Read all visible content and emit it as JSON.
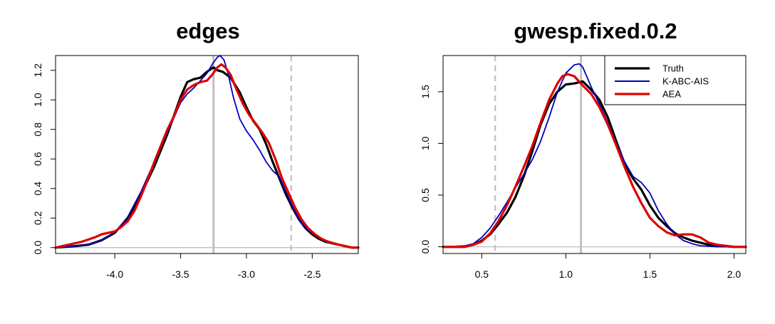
{
  "chart_data": [
    {
      "type": "line",
      "title": "edges",
      "xlabel": "",
      "ylabel": "",
      "xlim": [
        -4.45,
        -2.15
      ],
      "ylim": [
        -0.04,
        1.3
      ],
      "xticks": [
        -4.0,
        -3.5,
        -3.0,
        -2.5
      ],
      "xtick_labels": [
        "-4.0",
        "-3.5",
        "-3.0",
        "-2.5"
      ],
      "yticks": [
        0.0,
        0.2,
        0.4,
        0.6,
        0.8,
        1.0,
        1.2
      ],
      "ytick_labels": [
        "0.0",
        "0.2",
        "0.4",
        "0.6",
        "0.8",
        "1.0",
        "1.2"
      ],
      "reference_lines": [
        {
          "orientation": "horizontal",
          "value": 0,
          "color": "#c0c0c0",
          "style": "solid"
        },
        {
          "orientation": "vertical",
          "value": -3.25,
          "color": "#c0c0c0",
          "style": "solid"
        },
        {
          "orientation": "vertical",
          "value": -2.66,
          "color": "#c0c0c0",
          "style": "dashed"
        }
      ],
      "series": [
        {
          "color": "#000000",
          "x": [
            -4.45,
            -4.3,
            -4.2,
            -4.1,
            -4.0,
            -3.9,
            -3.8,
            -3.7,
            -3.6,
            -3.5,
            -3.45,
            -3.4,
            -3.35,
            -3.3,
            -3.25,
            -3.22,
            -3.18,
            -3.12,
            -3.05,
            -3.0,
            -2.95,
            -2.9,
            -2.85,
            -2.8,
            -2.75,
            -2.7,
            -2.65,
            -2.6,
            -2.55,
            -2.5,
            -2.45,
            -2.4,
            -2.3,
            -2.2,
            -2.15
          ],
          "y": [
            0.0,
            0.01,
            0.02,
            0.05,
            0.1,
            0.2,
            0.36,
            0.55,
            0.77,
            1.02,
            1.12,
            1.14,
            1.15,
            1.19,
            1.22,
            1.2,
            1.19,
            1.15,
            1.05,
            0.95,
            0.86,
            0.8,
            0.7,
            0.58,
            0.47,
            0.36,
            0.27,
            0.19,
            0.13,
            0.09,
            0.06,
            0.04,
            0.02,
            0.0,
            0.0
          ]
        },
        {
          "color": "#0000bb",
          "x": [
            -4.45,
            -4.3,
            -4.2,
            -4.1,
            -4.0,
            -3.9,
            -3.8,
            -3.7,
            -3.6,
            -3.5,
            -3.45,
            -3.4,
            -3.35,
            -3.3,
            -3.26,
            -3.22,
            -3.2,
            -3.17,
            -3.14,
            -3.1,
            -3.05,
            -3.0,
            -2.95,
            -2.9,
            -2.85,
            -2.8,
            -2.75,
            -2.7,
            -2.65,
            -2.6,
            -2.55,
            -2.5,
            -2.45,
            -2.4,
            -2.3,
            -2.2,
            -2.15
          ],
          "y": [
            0.0,
            0.01,
            0.02,
            0.05,
            0.1,
            0.21,
            0.38,
            0.58,
            0.78,
            0.98,
            1.04,
            1.08,
            1.13,
            1.18,
            1.24,
            1.29,
            1.3,
            1.27,
            1.18,
            1.02,
            0.87,
            0.79,
            0.73,
            0.66,
            0.58,
            0.52,
            0.48,
            0.38,
            0.28,
            0.19,
            0.13,
            0.1,
            0.07,
            0.05,
            0.02,
            0.0,
            0.0
          ]
        },
        {
          "color": "#dd0000",
          "x": [
            -4.45,
            -4.35,
            -4.25,
            -4.15,
            -4.1,
            -4.05,
            -4.0,
            -3.95,
            -3.9,
            -3.85,
            -3.8,
            -3.75,
            -3.7,
            -3.65,
            -3.6,
            -3.55,
            -3.5,
            -3.45,
            -3.4,
            -3.35,
            -3.3,
            -3.26,
            -3.22,
            -3.19,
            -3.16,
            -3.12,
            -3.08,
            -3.03,
            -2.98,
            -2.93,
            -2.88,
            -2.83,
            -2.78,
            -2.73,
            -2.68,
            -2.63,
            -2.58,
            -2.53,
            -2.48,
            -2.43,
            -2.38,
            -2.3,
            -2.2,
            -2.15
          ],
          "y": [
            0.0,
            0.02,
            0.04,
            0.07,
            0.09,
            0.1,
            0.11,
            0.14,
            0.18,
            0.25,
            0.35,
            0.46,
            0.58,
            0.69,
            0.8,
            0.89,
            1.0,
            1.07,
            1.1,
            1.12,
            1.13,
            1.17,
            1.22,
            1.24,
            1.22,
            1.17,
            1.08,
            0.98,
            0.9,
            0.84,
            0.78,
            0.71,
            0.6,
            0.47,
            0.37,
            0.27,
            0.19,
            0.13,
            0.09,
            0.06,
            0.04,
            0.02,
            0.0,
            0.0
          ]
        }
      ]
    },
    {
      "type": "line",
      "title": "gwesp.fixed.0.2",
      "xlabel": "",
      "ylabel": "",
      "xlim": [
        0.27,
        2.07
      ],
      "ylim": [
        -0.065,
        1.85
      ],
      "xticks": [
        0.5,
        1.0,
        1.5,
        2.0
      ],
      "xtick_labels": [
        "0.5",
        "1.0",
        "1.5",
        "2.0"
      ],
      "yticks": [
        0.0,
        0.5,
        1.0,
        1.5
      ],
      "ytick_labels": [
        "0.0",
        "0.5",
        "1.0",
        "1.5"
      ],
      "reference_lines": [
        {
          "orientation": "horizontal",
          "value": 0,
          "color": "#c0c0c0",
          "style": "solid"
        },
        {
          "orientation": "vertical",
          "value": 1.09,
          "color": "#c0c0c0",
          "style": "solid"
        },
        {
          "orientation": "vertical",
          "value": 0.58,
          "color": "#c0c0c0",
          "style": "dashed"
        }
      ],
      "legend": {
        "position": "top-right",
        "entries": [
          {
            "label": "Truth",
            "color": "#000000"
          },
          {
            "label": "K-ABC-AIS",
            "color": "#0000bb"
          },
          {
            "label": "AEA",
            "color": "#dd0000"
          }
        ]
      },
      "series": [
        {
          "name": "Truth",
          "color": "#000000",
          "x": [
            0.27,
            0.4,
            0.45,
            0.5,
            0.55,
            0.6,
            0.65,
            0.7,
            0.75,
            0.8,
            0.85,
            0.9,
            0.95,
            1.0,
            1.05,
            1.1,
            1.15,
            1.2,
            1.25,
            1.3,
            1.35,
            1.4,
            1.45,
            1.5,
            1.55,
            1.6,
            1.65,
            1.7,
            1.75,
            1.8,
            1.85,
            1.9,
            2.0,
            2.07
          ],
          "y": [
            0.0,
            0.0,
            0.02,
            0.06,
            0.12,
            0.22,
            0.33,
            0.48,
            0.68,
            0.92,
            1.18,
            1.38,
            1.5,
            1.57,
            1.58,
            1.6,
            1.52,
            1.42,
            1.25,
            1.02,
            0.8,
            0.66,
            0.55,
            0.4,
            0.28,
            0.2,
            0.13,
            0.09,
            0.06,
            0.04,
            0.02,
            0.01,
            0.0,
            0.0
          ]
        },
        {
          "name": "K-ABC-AIS",
          "color": "#0000bb",
          "x": [
            0.27,
            0.4,
            0.45,
            0.5,
            0.55,
            0.6,
            0.65,
            0.7,
            0.75,
            0.8,
            0.85,
            0.9,
            0.95,
            1.0,
            1.05,
            1.08,
            1.1,
            1.15,
            1.2,
            1.25,
            1.3,
            1.35,
            1.4,
            1.45,
            1.5,
            1.55,
            1.6,
            1.65,
            1.7,
            1.75,
            1.8,
            1.9,
            2.0,
            2.07
          ],
          "y": [
            0.0,
            0.01,
            0.03,
            0.09,
            0.18,
            0.3,
            0.43,
            0.57,
            0.7,
            0.84,
            1.02,
            1.25,
            1.5,
            1.68,
            1.76,
            1.77,
            1.74,
            1.55,
            1.38,
            1.2,
            1.0,
            0.82,
            0.68,
            0.62,
            0.52,
            0.35,
            0.22,
            0.12,
            0.06,
            0.03,
            0.01,
            0.0,
            0.0,
            0.0
          ]
        },
        {
          "name": "AEA",
          "color": "#dd0000",
          "x": [
            0.27,
            0.4,
            0.45,
            0.5,
            0.55,
            0.6,
            0.65,
            0.7,
            0.75,
            0.8,
            0.85,
            0.9,
            0.95,
            0.98,
            1.01,
            1.05,
            1.1,
            1.15,
            1.2,
            1.25,
            1.3,
            1.35,
            1.4,
            1.45,
            1.5,
            1.55,
            1.6,
            1.65,
            1.7,
            1.75,
            1.8,
            1.85,
            1.9,
            2.0,
            2.07
          ],
          "y": [
            0.0,
            0.0,
            0.02,
            0.05,
            0.13,
            0.25,
            0.4,
            0.58,
            0.77,
            0.97,
            1.2,
            1.42,
            1.58,
            1.65,
            1.67,
            1.65,
            1.56,
            1.48,
            1.35,
            1.18,
            0.98,
            0.77,
            0.58,
            0.42,
            0.28,
            0.2,
            0.14,
            0.11,
            0.12,
            0.12,
            0.09,
            0.04,
            0.02,
            0.0,
            0.0
          ]
        }
      ]
    }
  ]
}
